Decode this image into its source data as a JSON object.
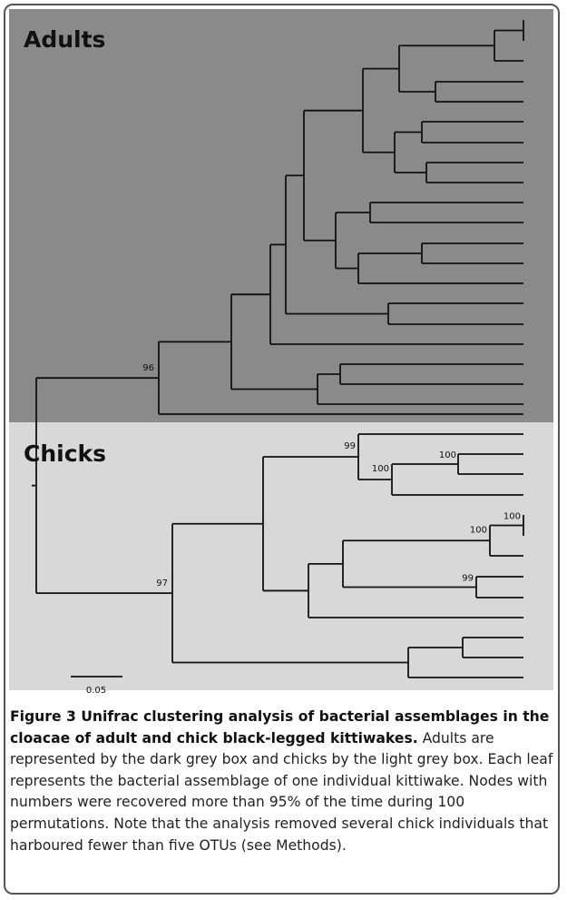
{
  "figure": {
    "panel_labels": [
      "Adults",
      "Chicks"
    ],
    "node_labels": [
      "96",
      "99",
      "100",
      "100",
      "100",
      "100",
      "99",
      "97"
    ],
    "scale_bar": "0.05",
    "caption": {
      "title": "Figure 3 Unifrac clustering analysis of bacterial assemblages in the cloacae of adult and chick black-legged kittiwakes.",
      "text": "Adults are represented by the dark grey box and chicks by the light grey box. Each leaf represents the bacterial assemblage of one individual kittiwake. Nodes with numbers were recovered more than 95% of the time during 100 permutations. Note that the analysis removed several chick individuals that harboured fewer than five OTUs (see Methods)."
    }
  }
}
